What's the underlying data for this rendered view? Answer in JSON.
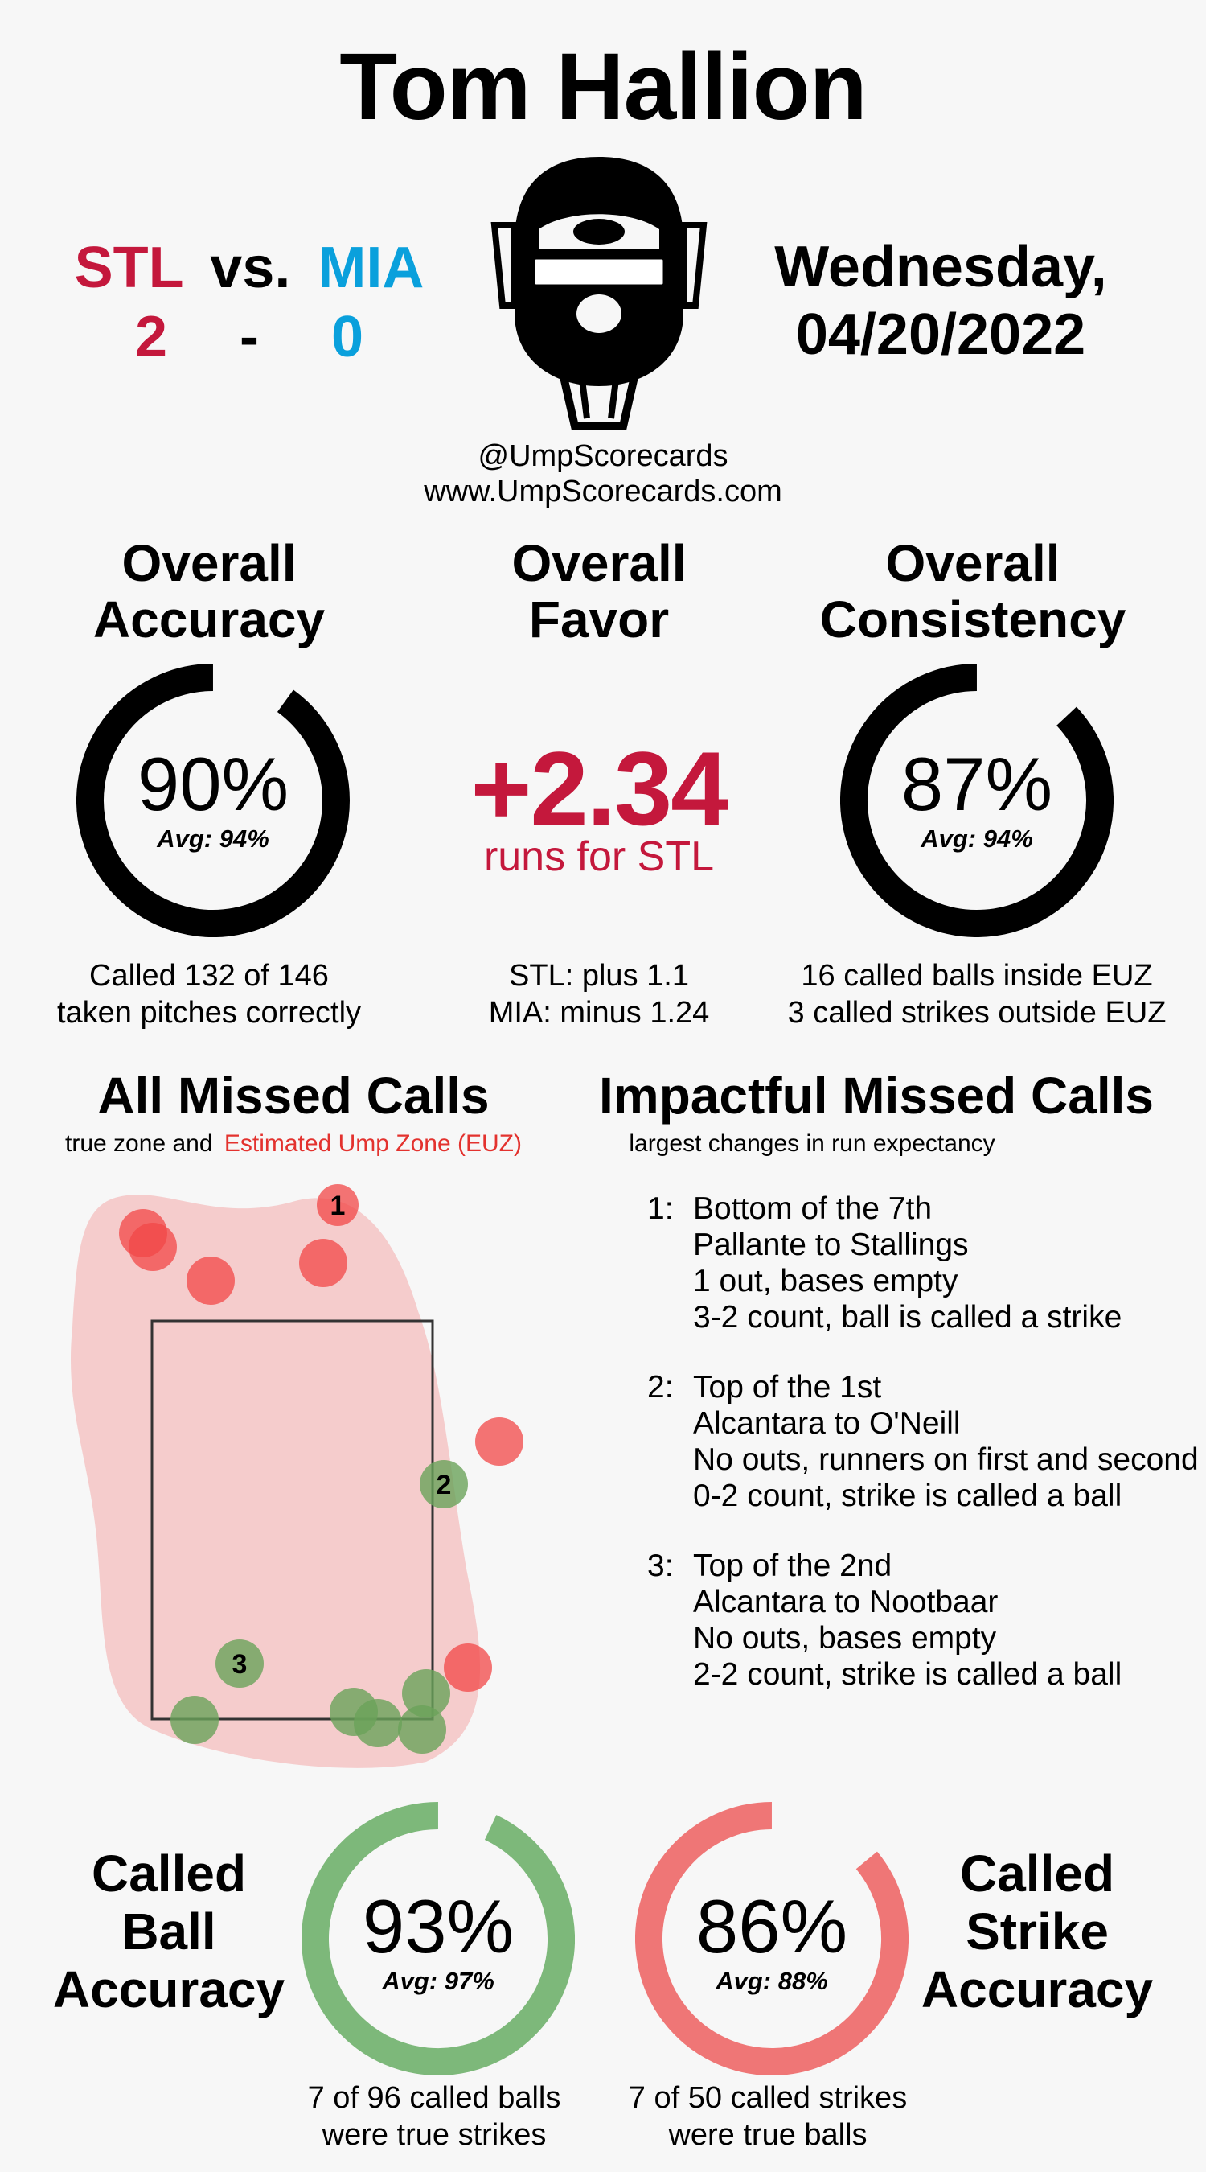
{
  "umpire": "Tom Hallion",
  "game": {
    "away_team": "STL",
    "vs": "vs.",
    "home_team": "MIA",
    "away_score": "2",
    "dash": "-",
    "home_score": "0",
    "day": "Wednesday,",
    "date": "04/20/2022"
  },
  "social": {
    "handle": "@UmpScorecards",
    "site": "www.UmpScorecards.com"
  },
  "accuracy": {
    "title_line1": "Overall",
    "title_line2": "Accuracy",
    "value": "90%",
    "avg": "Avg: 94%",
    "fraction": 0.9,
    "desc_line1": "Called 132 of 146",
    "desc_line2": "taken pitches correctly",
    "color": "#000000"
  },
  "favor": {
    "title_line1": "Overall",
    "title_line2": "Favor",
    "value": "+2.34",
    "subtitle": "runs for STL",
    "desc_line1": "STL: plus 1.1",
    "desc_line2": "MIA: minus 1.24",
    "color": "#c4183c"
  },
  "consistency": {
    "title_line1": "Overall",
    "title_line2": "Consistency",
    "value": "87%",
    "avg": "Avg: 94%",
    "fraction": 0.87,
    "desc_line1": "16 called balls inside EUZ",
    "desc_line2": "3 called strikes outside EUZ",
    "color": "#000000"
  },
  "all_missed": {
    "title": "All Missed Calls",
    "subtitle_plain": "true zone and",
    "subtitle_red": "Estimated Ump Zone (EUZ)",
    "labeled_calls": [
      "1",
      "2",
      "3"
    ]
  },
  "impactful": {
    "title": "Impactful Missed Calls",
    "subtitle": "largest changes in run expectancy",
    "calls": [
      {
        "num": "1:",
        "inning": "Bottom of the 7th",
        "matchup": "Pallante to Stallings",
        "situation": "1 out, bases empty",
        "count": "3-2 count, ball is called a strike"
      },
      {
        "num": "2:",
        "inning": "Top of the 1st",
        "matchup": "Alcantara to O'Neill",
        "situation": "No outs, runners on first and second",
        "count": "0-2 count, strike is called a ball"
      },
      {
        "num": "3:",
        "inning": "Top of the 2nd",
        "matchup": "Alcantara to Nootbaar",
        "situation": "No outs, bases empty",
        "count": "2-2 count, strike is called a ball"
      }
    ]
  },
  "ball_accuracy": {
    "title_line1": "Called",
    "title_line2": "Ball",
    "title_line3": "Accuracy",
    "value": "93%",
    "avg": "Avg: 97%",
    "fraction": 0.93,
    "desc_line1": "7 of 96 called balls",
    "desc_line2": "were true strikes",
    "color": "#7db87a"
  },
  "strike_accuracy": {
    "title_line1": "Called",
    "title_line2": "Strike",
    "title_line3": "Accuracy",
    "value": "86%",
    "avg": "Avg: 88%",
    "fraction": 0.86,
    "desc_line1": "7 of 50 called strikes",
    "desc_line2": "were true balls",
    "color": "#ef7676"
  }
}
